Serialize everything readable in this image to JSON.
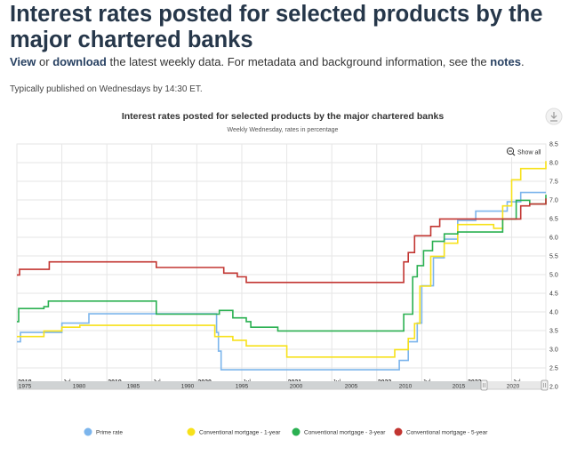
{
  "page": {
    "title": "Interest rates posted for selected products by the major chartered banks",
    "intro": {
      "link1": "View",
      "text1": " or ",
      "link2": "download",
      "text2": " the latest weekly data. For metadata and background information, see the ",
      "link3": "notes",
      "text3": "."
    },
    "published": "Typically published on Wednesdays by 14:30 ET."
  },
  "controls": {
    "show_all_label": "Show all",
    "export_icon": "download-icon",
    "zoom_icon": "zoom-out-icon"
  },
  "navigator": {
    "labels": [
      "1975",
      "1980",
      "1985",
      "1990",
      "1995",
      "2000",
      "2005",
      "2010",
      "2015",
      "2020"
    ]
  },
  "chart_data": {
    "type": "line",
    "title": "Interest rates posted for selected products by the major chartered banks",
    "subtitle": "Weekly Wednesday, rates in percentage",
    "x_tick_labels": [
      "2018",
      "Jul",
      "2019",
      "Jul",
      "2020",
      "Jul",
      "2021",
      "Jul",
      "2022",
      "Jul",
      "2023",
      "Jul"
    ],
    "x_tick_positions": [
      2018.0,
      2018.5,
      2019.0,
      2019.5,
      2020.0,
      2020.5,
      2021.0,
      2021.5,
      2022.0,
      2022.5,
      2023.0,
      2023.5
    ],
    "xlim": [
      2018.0,
      2023.88
    ],
    "ylim": [
      2.0,
      8.5
    ],
    "y_ticks": [
      "2.0",
      "2.5",
      "3.0",
      "3.5",
      "4.0",
      "4.5",
      "5.0",
      "5.5",
      "6.0",
      "6.5",
      "7.0",
      "7.5",
      "8.0",
      "8.5"
    ],
    "y_tick_values": [
      2.0,
      2.5,
      3.0,
      3.5,
      4.0,
      4.5,
      5.0,
      5.5,
      6.0,
      6.5,
      7.0,
      7.5,
      8.0,
      8.5
    ],
    "grid": true,
    "legend_position": "bottom",
    "series": [
      {
        "name": "Prime rate",
        "color": "#7cb5ec",
        "points": [
          [
            2018.0,
            3.2
          ],
          [
            2018.04,
            3.45
          ],
          [
            2018.5,
            3.7
          ],
          [
            2018.8,
            3.95
          ],
          [
            2020.2,
            3.95
          ],
          [
            2020.22,
            3.45
          ],
          [
            2020.24,
            2.95
          ],
          [
            2020.27,
            2.45
          ],
          [
            2022.2,
            2.45
          ],
          [
            2022.25,
            2.7
          ],
          [
            2022.35,
            3.2
          ],
          [
            2022.45,
            3.7
          ],
          [
            2022.5,
            4.7
          ],
          [
            2022.63,
            5.45
          ],
          [
            2022.75,
            5.95
          ],
          [
            2022.9,
            6.45
          ],
          [
            2023.1,
            6.7
          ],
          [
            2023.45,
            6.95
          ],
          [
            2023.6,
            7.2
          ],
          [
            2023.88,
            7.2
          ]
        ]
      },
      {
        "name": "Conventional mortgage - 1-year",
        "color": "#f7e11a",
        "points": [
          [
            2018.0,
            3.34
          ],
          [
            2018.3,
            3.49
          ],
          [
            2018.5,
            3.59
          ],
          [
            2018.7,
            3.64
          ],
          [
            2020.15,
            3.64
          ],
          [
            2020.2,
            3.34
          ],
          [
            2020.4,
            3.24
          ],
          [
            2020.55,
            3.09
          ],
          [
            2020.9,
            3.09
          ],
          [
            2021.0,
            2.79
          ],
          [
            2022.1,
            2.79
          ],
          [
            2022.2,
            2.99
          ],
          [
            2022.35,
            3.29
          ],
          [
            2022.42,
            3.69
          ],
          [
            2022.48,
            4.69
          ],
          [
            2022.6,
            5.49
          ],
          [
            2022.75,
            5.84
          ],
          [
            2022.9,
            6.34
          ],
          [
            2023.1,
            6.34
          ],
          [
            2023.3,
            6.24
          ],
          [
            2023.4,
            6.84
          ],
          [
            2023.5,
            7.54
          ],
          [
            2023.6,
            7.84
          ],
          [
            2023.8,
            7.84
          ],
          [
            2023.88,
            8.04
          ]
        ]
      },
      {
        "name": "Conventional mortgage - 3-year",
        "color": "#2ab051",
        "points": [
          [
            2018.0,
            3.74
          ],
          [
            2018.02,
            4.09
          ],
          [
            2018.3,
            4.14
          ],
          [
            2018.35,
            4.29
          ],
          [
            2019.5,
            4.29
          ],
          [
            2019.55,
            3.94
          ],
          [
            2020.2,
            3.94
          ],
          [
            2020.25,
            4.04
          ],
          [
            2020.4,
            3.84
          ],
          [
            2020.55,
            3.74
          ],
          [
            2020.6,
            3.59
          ],
          [
            2020.85,
            3.59
          ],
          [
            2020.9,
            3.49
          ],
          [
            2022.2,
            3.49
          ],
          [
            2022.3,
            3.94
          ],
          [
            2022.4,
            4.94
          ],
          [
            2022.45,
            5.24
          ],
          [
            2022.52,
            5.64
          ],
          [
            2022.62,
            5.89
          ],
          [
            2022.75,
            6.09
          ],
          [
            2022.9,
            6.14
          ],
          [
            2023.3,
            6.14
          ],
          [
            2023.4,
            6.49
          ],
          [
            2023.55,
            6.99
          ],
          [
            2023.7,
            6.89
          ],
          [
            2023.88,
            7.14
          ]
        ]
      },
      {
        "name": "Conventional mortgage - 5-year",
        "color": "#c23531",
        "points": [
          [
            2018.0,
            4.99
          ],
          [
            2018.03,
            5.14
          ],
          [
            2018.3,
            5.14
          ],
          [
            2018.36,
            5.34
          ],
          [
            2019.5,
            5.34
          ],
          [
            2019.55,
            5.19
          ],
          [
            2020.1,
            5.19
          ],
          [
            2020.3,
            5.04
          ],
          [
            2020.45,
            4.94
          ],
          [
            2020.55,
            4.79
          ],
          [
            2022.2,
            4.79
          ],
          [
            2022.3,
            5.34
          ],
          [
            2022.35,
            5.59
          ],
          [
            2022.42,
            6.04
          ],
          [
            2022.6,
            6.29
          ],
          [
            2022.7,
            6.49
          ],
          [
            2023.5,
            6.49
          ],
          [
            2023.6,
            6.84
          ],
          [
            2023.7,
            6.89
          ],
          [
            2023.88,
            7.04
          ]
        ]
      }
    ]
  }
}
